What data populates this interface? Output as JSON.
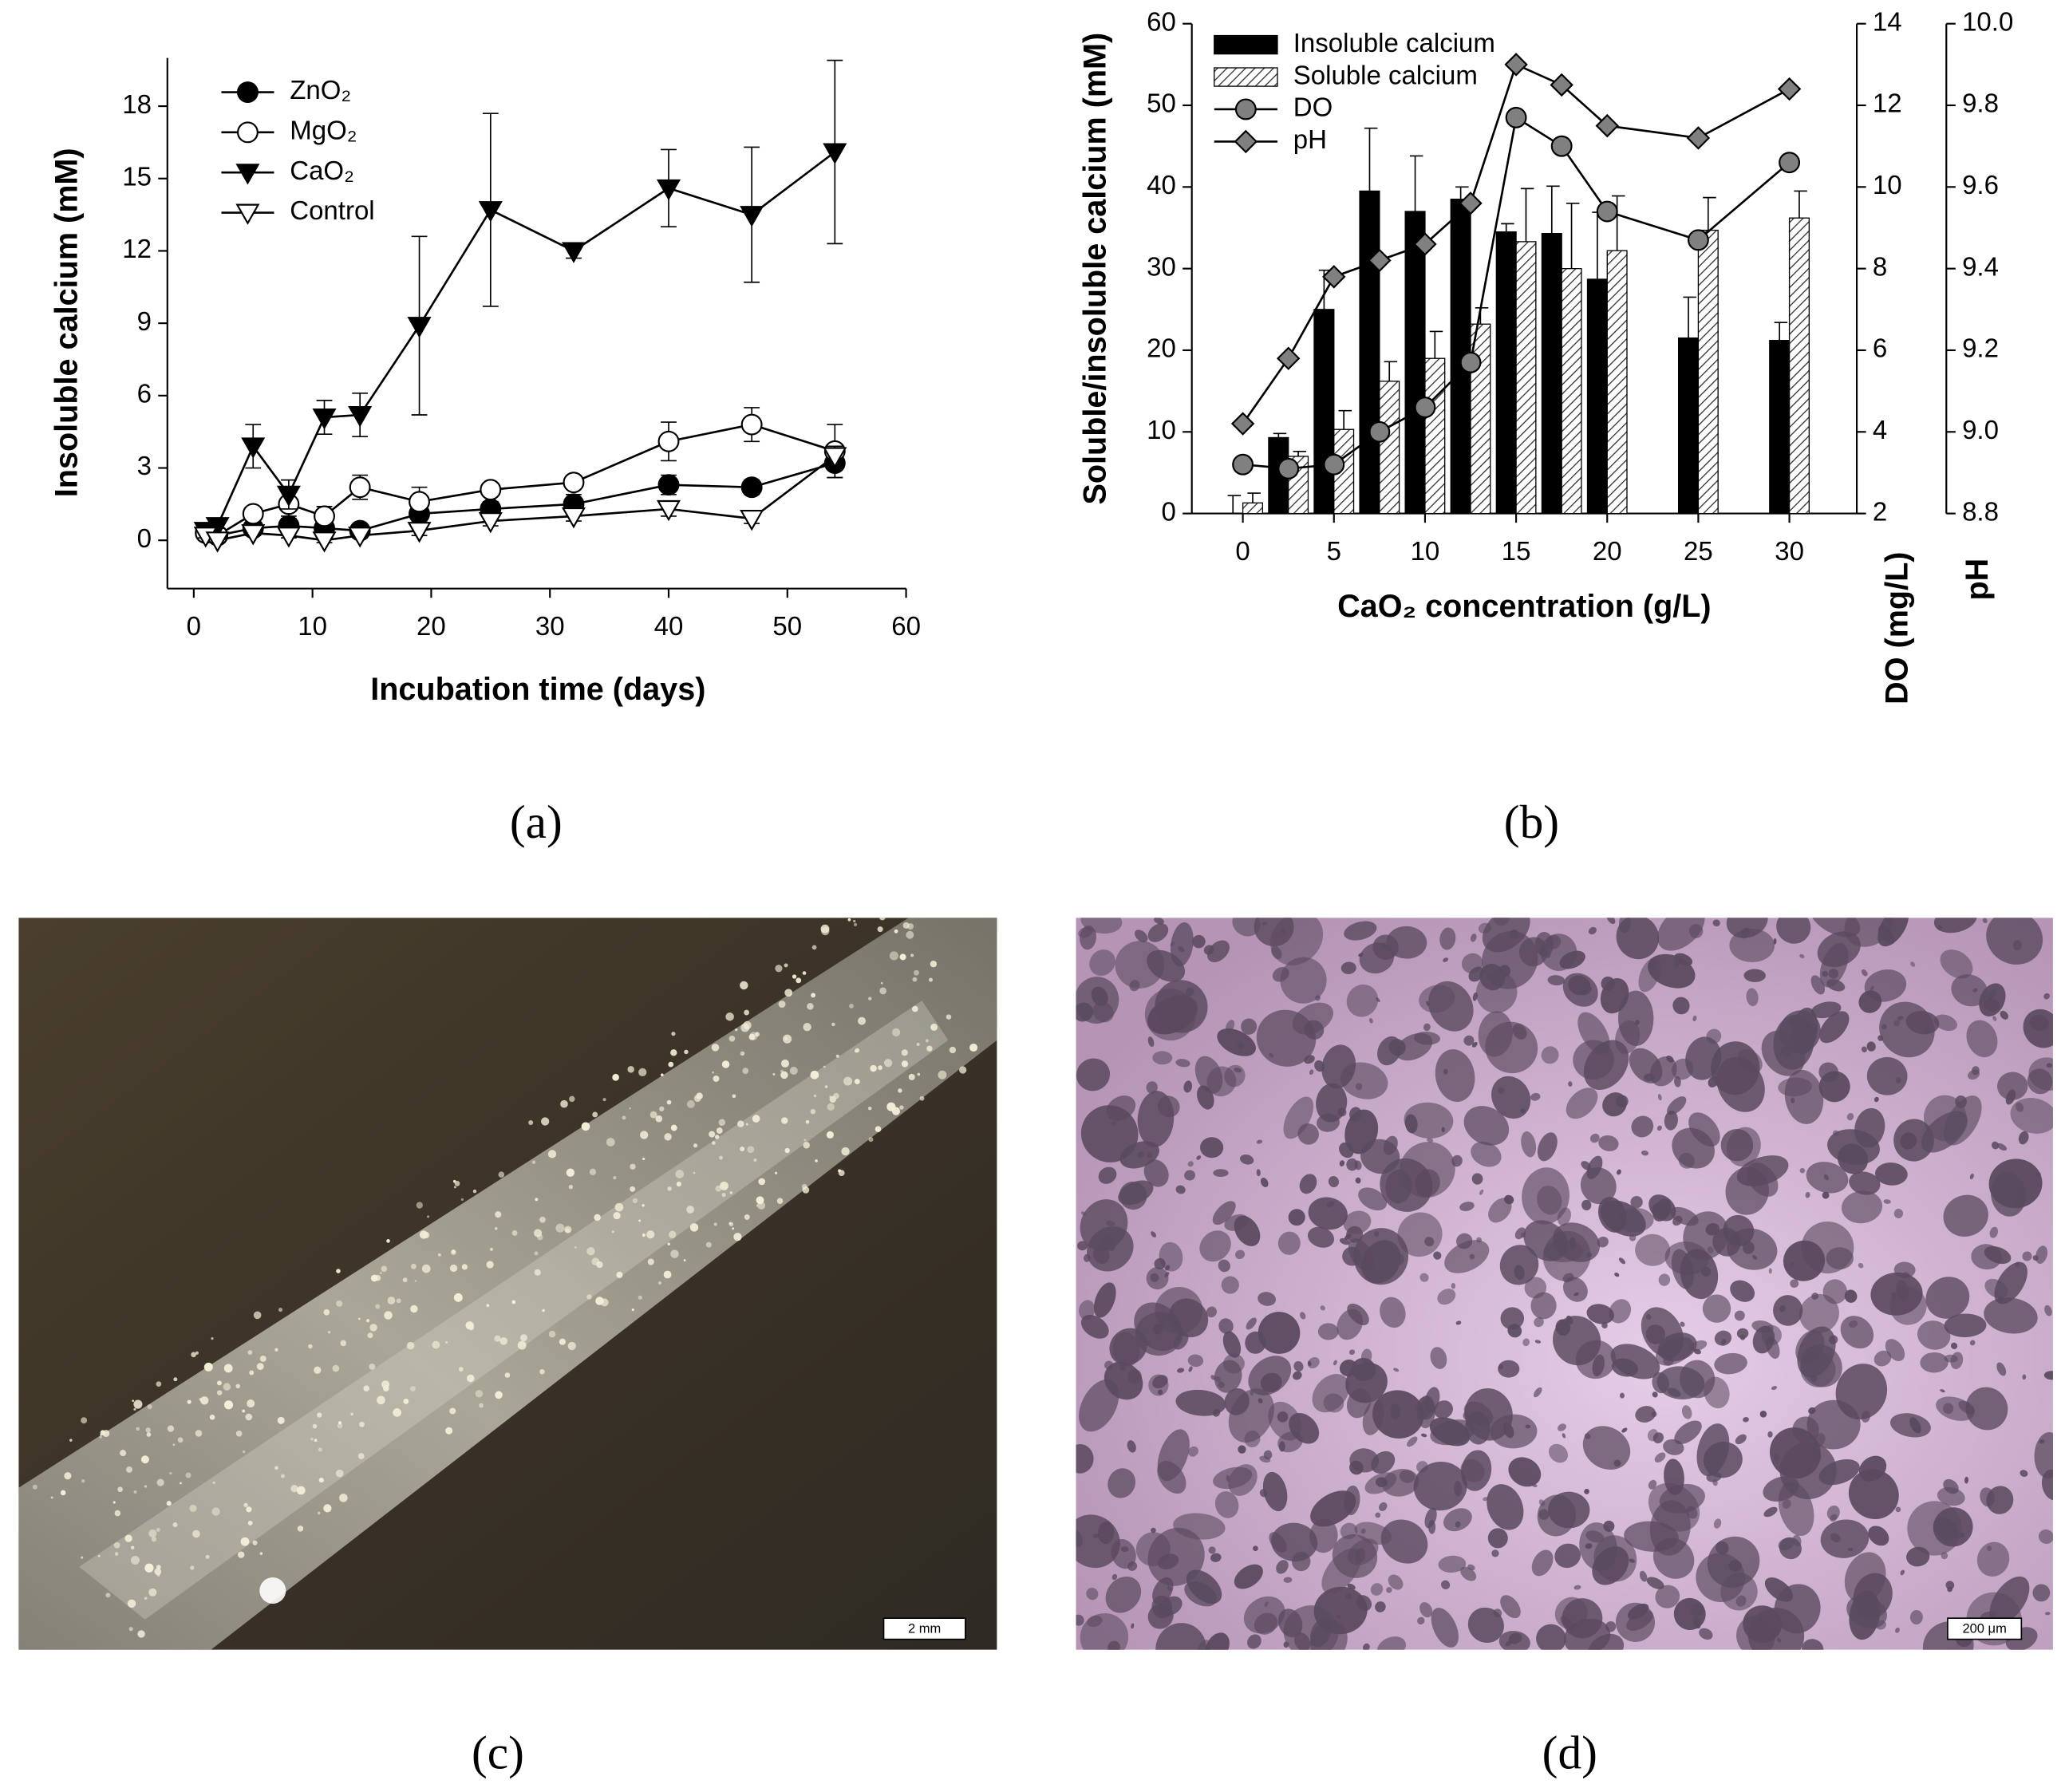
{
  "chart_data": [
    {
      "type": "line",
      "xlabel": "Incubation time (days)",
      "ylabel": "Insoluble calcium (mM)",
      "x": [
        1,
        2,
        5,
        8,
        11,
        14,
        19,
        25,
        32,
        40,
        47,
        54
      ],
      "xlim": [
        -2,
        60
      ],
      "xticks": [
        0,
        10,
        20,
        30,
        40,
        50,
        60
      ],
      "ylim": [
        -2,
        20
      ],
      "yticks": [
        0,
        3,
        6,
        9,
        12,
        15,
        18
      ],
      "series": [
        {
          "name": "ZnO₂",
          "marker": "circle",
          "color": "#000000",
          "values": [
            0.3,
            0.2,
            0.5,
            0.6,
            0.5,
            0.4,
            1.1,
            1.3,
            1.5,
            2.3,
            2.2,
            3.2
          ],
          "errors": [
            0.1,
            0.1,
            0.2,
            0.3,
            0.2,
            0.2,
            0.3,
            0.3,
            0.4,
            0.4,
            0.3,
            0.6
          ]
        },
        {
          "name": "MgO₂",
          "marker": "circle",
          "color": "#ffffff",
          "values": [
            0.3,
            0.2,
            1.1,
            1.5,
            1.0,
            2.2,
            1.6,
            2.1,
            2.4,
            4.1,
            4.8,
            3.7
          ],
          "errors": [
            0.1,
            0.1,
            0.2,
            0.5,
            0.4,
            0.5,
            0.6,
            0.2,
            0.2,
            0.8,
            0.7,
            1.1
          ]
        },
        {
          "name": "CaO₂",
          "marker": "triangle-down",
          "color": "#000000",
          "values": [
            0.4,
            0.6,
            3.9,
            1.9,
            5.1,
            5.2,
            8.9,
            13.7,
            12.0,
            14.6,
            13.5,
            16.1
          ],
          "errors": [
            0.1,
            0.1,
            0.9,
            0.6,
            0.7,
            0.9,
            3.7,
            4.0,
            0.3,
            1.6,
            2.8,
            3.8
          ]
        },
        {
          "name": "Control",
          "marker": "triangle-down",
          "color": "#ffffff",
          "values": [
            0.2,
            0.0,
            0.3,
            0.2,
            0.0,
            0.2,
            0.4,
            0.8,
            1.0,
            1.3,
            0.9,
            3.5
          ],
          "errors": [
            0.1,
            0.1,
            0.1,
            0.1,
            0.1,
            0.1,
            0.2,
            0.2,
            0.2,
            0.3,
            0.2,
            0.4
          ]
        }
      ]
    },
    {
      "type": "bar",
      "xlabel": "CaO₂ concentration (g/L)",
      "ylabel": "Soluble/insoluble calcium (mM)",
      "y2label": "DO (mg/L)",
      "y3label": "pH",
      "x": [
        0,
        2.5,
        5,
        7.5,
        10,
        12.5,
        15,
        17.5,
        20,
        25,
        30
      ],
      "xlim": [
        -2.8,
        33.7
      ],
      "xticks": [
        0,
        5,
        10,
        15,
        20,
        25,
        30
      ],
      "ylim": [
        0,
        60
      ],
      "yticks": [
        0,
        10,
        20,
        30,
        40,
        50,
        60
      ],
      "y2lim": [
        2,
        14
      ],
      "y2ticks": [
        2,
        4,
        6,
        8,
        10,
        12,
        14
      ],
      "y3lim": [
        8.8,
        10.0
      ],
      "y3ticks": [
        8.8,
        {
          "value": 9,
          "label": "9.0"
        },
        9.2,
        9.4,
        9.6,
        9.8,
        {
          "value": 10,
          "label": "10.0"
        }
      ],
      "series": [
        {
          "name": "Insoluble calcium",
          "type": "bar",
          "color": "#000000",
          "values": [
            0,
            9.3,
            25,
            39.5,
            37,
            38.5,
            34.5,
            34.3,
            28.7,
            21.5,
            21.2
          ],
          "errors": [
            2.2,
            0.5,
            4.8,
            7.7,
            6.8,
            1.5,
            1,
            5.8,
            8.2,
            5,
            2.2
          ]
        },
        {
          "name": "Soluble calcium",
          "type": "bar",
          "color": "#ffffff",
          "hatch": true,
          "values": [
            1.3,
            7,
            10.3,
            16.2,
            19,
            23.2,
            33.3,
            30,
            32.2,
            34.7,
            36.2
          ],
          "errors": [
            1.2,
            0.6,
            2.3,
            2.4,
            3.3,
            2,
            6.5,
            8,
            6.7,
            4,
            3.3
          ]
        },
        {
          "name": "DO",
          "type": "line",
          "axis": "y2",
          "marker": "circle",
          "color": "#808080",
          "values": [
            3.2,
            3.1,
            3.2,
            4.0,
            4.6,
            5.7,
            11.7,
            11.0,
            9.4,
            8.7,
            10.6
          ]
        },
        {
          "name": "pH",
          "type": "line",
          "axis": "y3",
          "marker": "diamond",
          "color": "#808080",
          "values": [
            9.02,
            9.18,
            9.38,
            9.42,
            9.46,
            9.56,
            9.9,
            9.85,
            9.75,
            9.72,
            9.84
          ]
        }
      ]
    }
  ],
  "panels": [
    "(a)",
    "(b)",
    "(c)",
    "(d)"
  ],
  "images": [
    {
      "scale_bar": "2 mm"
    },
    {
      "scale_bar": "200 μm"
    }
  ]
}
